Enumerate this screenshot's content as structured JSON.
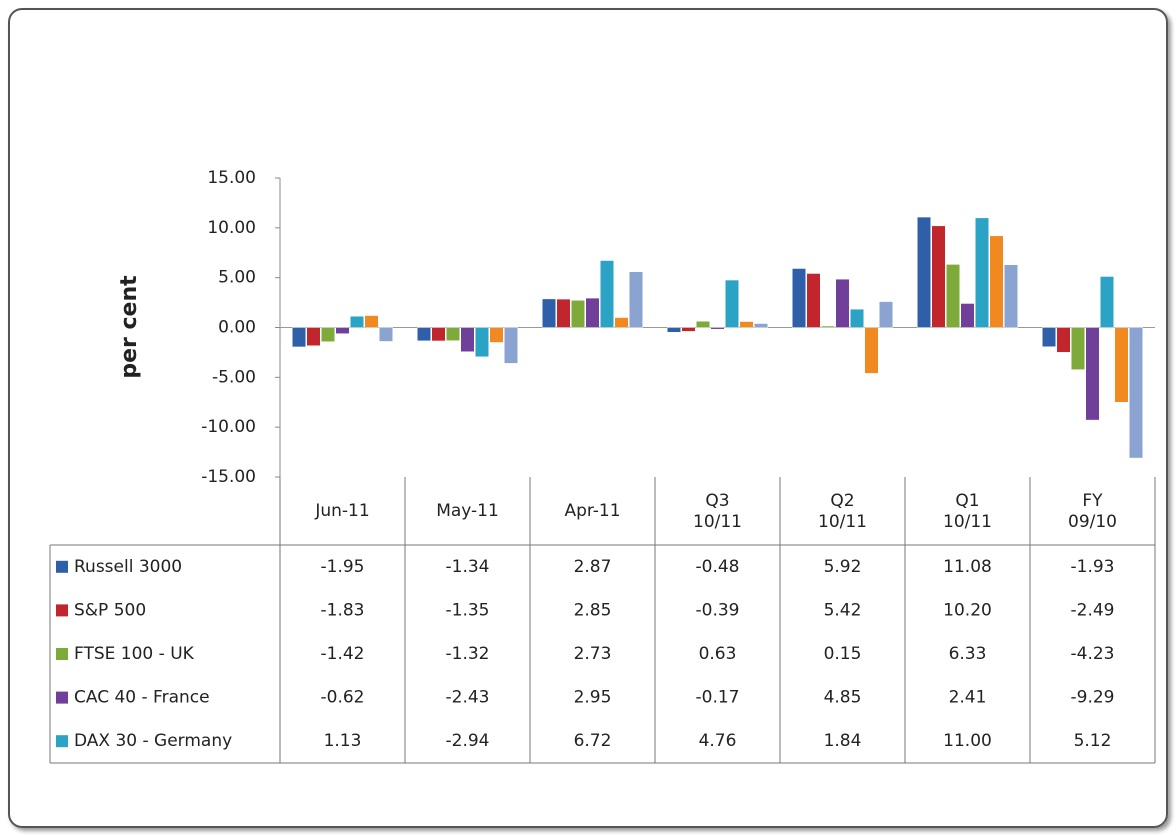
{
  "chart_data": {
    "type": "bar",
    "y_label": "per cent",
    "categories": [
      "Jun-11",
      "May-11",
      "Apr-11",
      "Q3\n10/11",
      "Q2\n10/11",
      "Q1\n10/11",
      "FY\n09/10"
    ],
    "ylim": [
      -15,
      15
    ],
    "yticks": [
      {
        "value": -15,
        "label": "-15.00"
      },
      {
        "value": -10,
        "label": "-10.00"
      },
      {
        "value": -5,
        "label": "-5.00"
      },
      {
        "value": 0,
        "label": "0.00"
      },
      {
        "value": 5,
        "label": "5.00"
      },
      {
        "value": 10,
        "label": "10.00"
      },
      {
        "value": 15,
        "label": "15.00"
      }
    ],
    "series": [
      {
        "name": "Russell 3000",
        "color": "#2e5fa8",
        "values": [
          -1.95,
          -1.34,
          2.87,
          -0.48,
          5.92,
          11.08,
          -1.93
        ],
        "value_labels": [
          "-1.95",
          "-1.34",
          "2.87",
          "-0.48",
          "5.92",
          "11.08",
          "-1.93"
        ]
      },
      {
        "name": "S&P 500",
        "color": "#c0262c",
        "values": [
          -1.83,
          -1.35,
          2.85,
          -0.39,
          5.42,
          10.2,
          -2.49
        ],
        "value_labels": [
          "-1.83",
          "-1.35",
          "2.85",
          "-0.39",
          "5.42",
          "10.20",
          "-2.49"
        ]
      },
      {
        "name": "FTSE 100 - UK",
        "color": "#7eaa3a",
        "values": [
          -1.42,
          -1.32,
          2.73,
          0.63,
          0.15,
          6.33,
          -4.23
        ],
        "value_labels": [
          "-1.42",
          "-1.32",
          "2.73",
          "0.63",
          "0.15",
          "6.33",
          "-4.23"
        ]
      },
      {
        "name": "CAC 40 - France",
        "color": "#6f3f9a",
        "values": [
          -0.62,
          -2.43,
          2.95,
          -0.17,
          4.85,
          2.41,
          -9.29
        ],
        "value_labels": [
          "-0.62",
          "-2.43",
          "2.95",
          "-0.17",
          "4.85",
          "2.41",
          "-9.29"
        ]
      },
      {
        "name": "DAX 30 - Germany",
        "color": "#2ba3c4",
        "values": [
          1.13,
          -2.94,
          6.72,
          4.76,
          1.84,
          11.0,
          5.12
        ],
        "value_labels": [
          "1.13",
          "-2.94",
          "6.72",
          "4.76",
          "1.84",
          "11.00",
          "5.12"
        ]
      },
      {
        "color": "#f08a20",
        "values": [
          1.2,
          -1.5,
          1.0,
          0.6,
          -4.6,
          9.2,
          -7.5
        ]
      },
      {
        "color": "#8aa3d1",
        "values": [
          -1.4,
          -3.6,
          5.6,
          0.4,
          2.6,
          6.3,
          -13.1
        ]
      }
    ]
  }
}
